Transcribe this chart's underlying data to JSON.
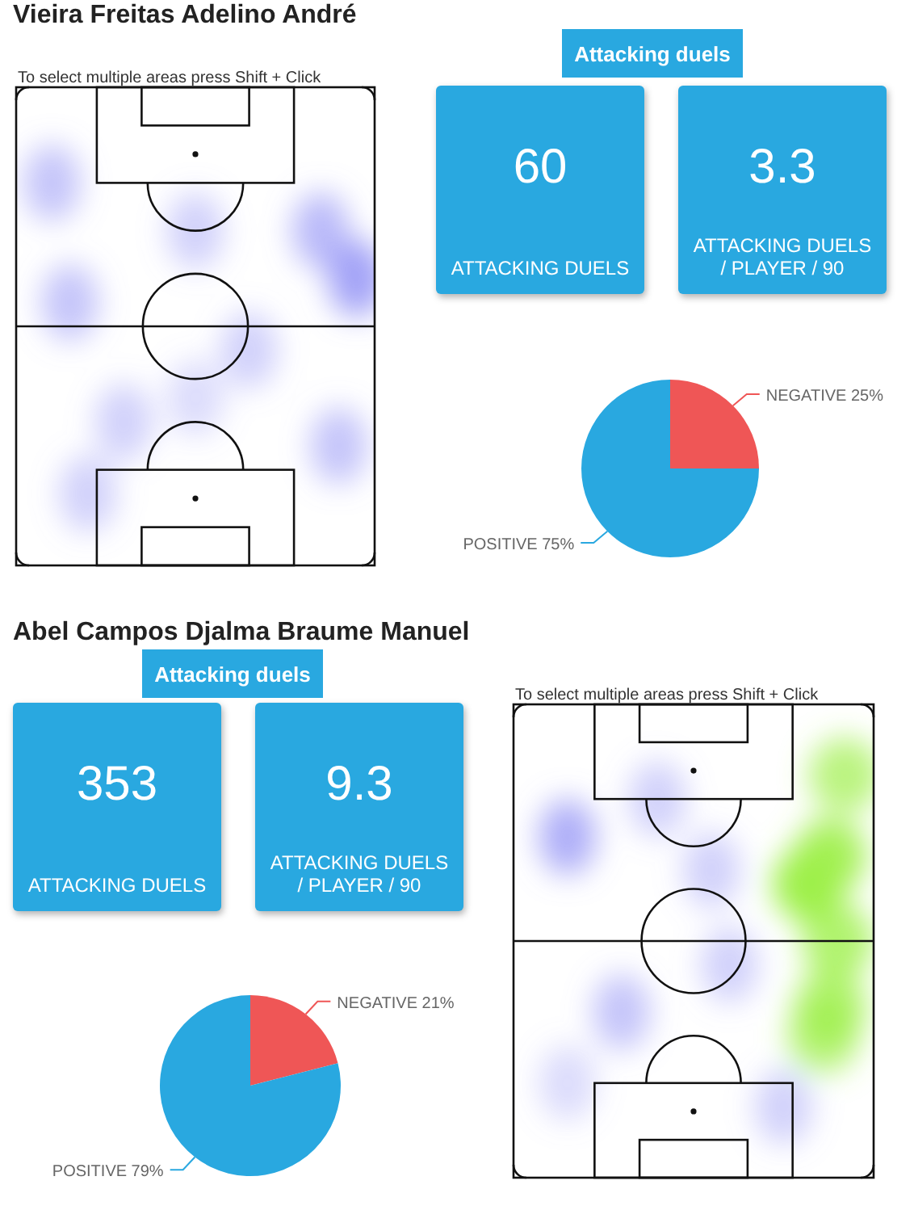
{
  "chart_data": [
    {
      "type": "other",
      "title": "Vieira Freitas Adelino André",
      "subtitle": "Attacking duels",
      "annotations": [
        "60",
        "ATTACKING DUELS",
        "3.3",
        "ATTACKING DUELS / PLAYER / 90",
        "To select multiple areas press Shift + Click"
      ]
    },
    {
      "type": "pie",
      "categories": [
        "NEGATIVE",
        "POSITIVE"
      ],
      "values": [
        25,
        75
      ],
      "colors": [
        "#ef5656",
        "#29a8e0"
      ],
      "value_labels": [
        "25%",
        "75%"
      ]
    },
    {
      "type": "other",
      "title": "Abel Campos Djalma Braume Manuel",
      "subtitle": "Attacking duels",
      "annotations": [
        "353",
        "ATTACKING DUELS",
        "9.3",
        "ATTACKING DUELS / PLAYER / 90",
        "To select multiple areas press Shift + Click"
      ]
    },
    {
      "type": "pie",
      "categories": [
        "NEGATIVE",
        "POSITIVE"
      ],
      "values": [
        21,
        79
      ],
      "colors": [
        "#ef5656",
        "#29a8e0"
      ],
      "value_labels": [
        "21%",
        "79%"
      ]
    }
  ]
}
